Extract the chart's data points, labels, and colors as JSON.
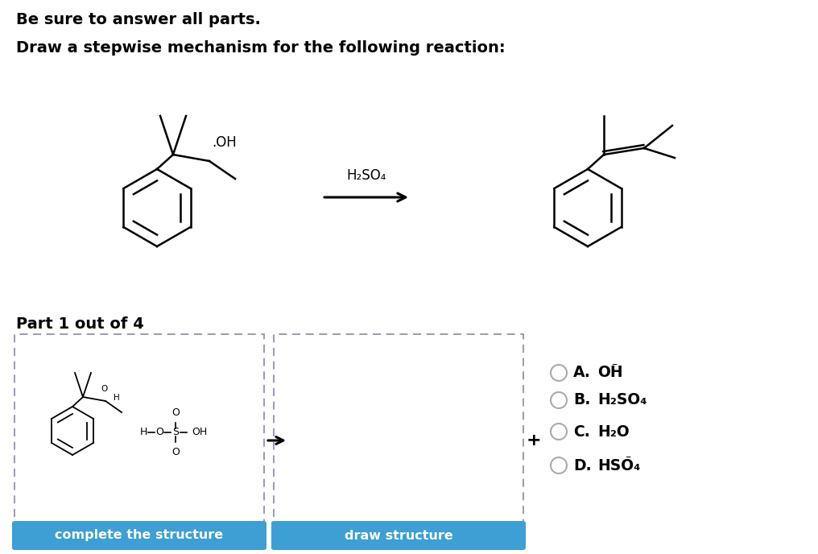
{
  "bg_color": "#ffffff",
  "title_line1": "Be sure to answer all parts.",
  "title_line2": "Draw a stepwise mechanism for the following reaction:",
  "part_label": "Part 1 out of 4",
  "reagent_label": "H₂SO₄",
  "button1_text": "complete the structure",
  "button2_text": "draw structure",
  "button_color": "#3d9fd3",
  "button_text_color": "#ffffff",
  "dashed_border_color": "#7777aa",
  "arrow_color": "#000000",
  "choice_A": "A.",
  "choice_A_formula": "OH",
  "choice_A_charge": "⁻",
  "choice_B": "B.",
  "choice_B_formula": "H₂SO₄",
  "choice_C": "C.",
  "choice_C_formula": "H₂O",
  "choice_D": "D.",
  "choice_D_formula": "HSO₄",
  "choice_D_charge": "⁻"
}
